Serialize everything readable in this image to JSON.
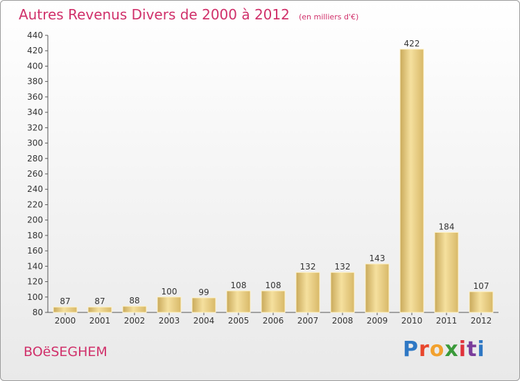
{
  "header": {
    "title": "Autres Revenus Divers de 2000 à 2012",
    "subtitle": "(en milliers d'€)"
  },
  "footer": {
    "city": "BOëSEGHEM",
    "brand": "Proxiti",
    "brand_colors": [
      "#2f78c4",
      "#e8462c",
      "#f2a12e",
      "#3a9a3a",
      "#e0313a",
      "#7a3d9b",
      "#2f78c4"
    ]
  },
  "chart_data": {
    "type": "bar",
    "categories": [
      "2000",
      "2001",
      "2002",
      "2003",
      "2004",
      "2005",
      "2006",
      "2007",
      "2008",
      "2009",
      "2010",
      "2011",
      "2012"
    ],
    "values": [
      87,
      87,
      88,
      100,
      99,
      108,
      108,
      132,
      132,
      143,
      422,
      184,
      107
    ],
    "ylim": [
      80,
      440
    ],
    "yticks": [
      80,
      100,
      120,
      140,
      160,
      180,
      200,
      220,
      240,
      260,
      280,
      300,
      320,
      340,
      360,
      380,
      400,
      420,
      440
    ],
    "grid": false,
    "bar_color": "#e8cf7d"
  }
}
